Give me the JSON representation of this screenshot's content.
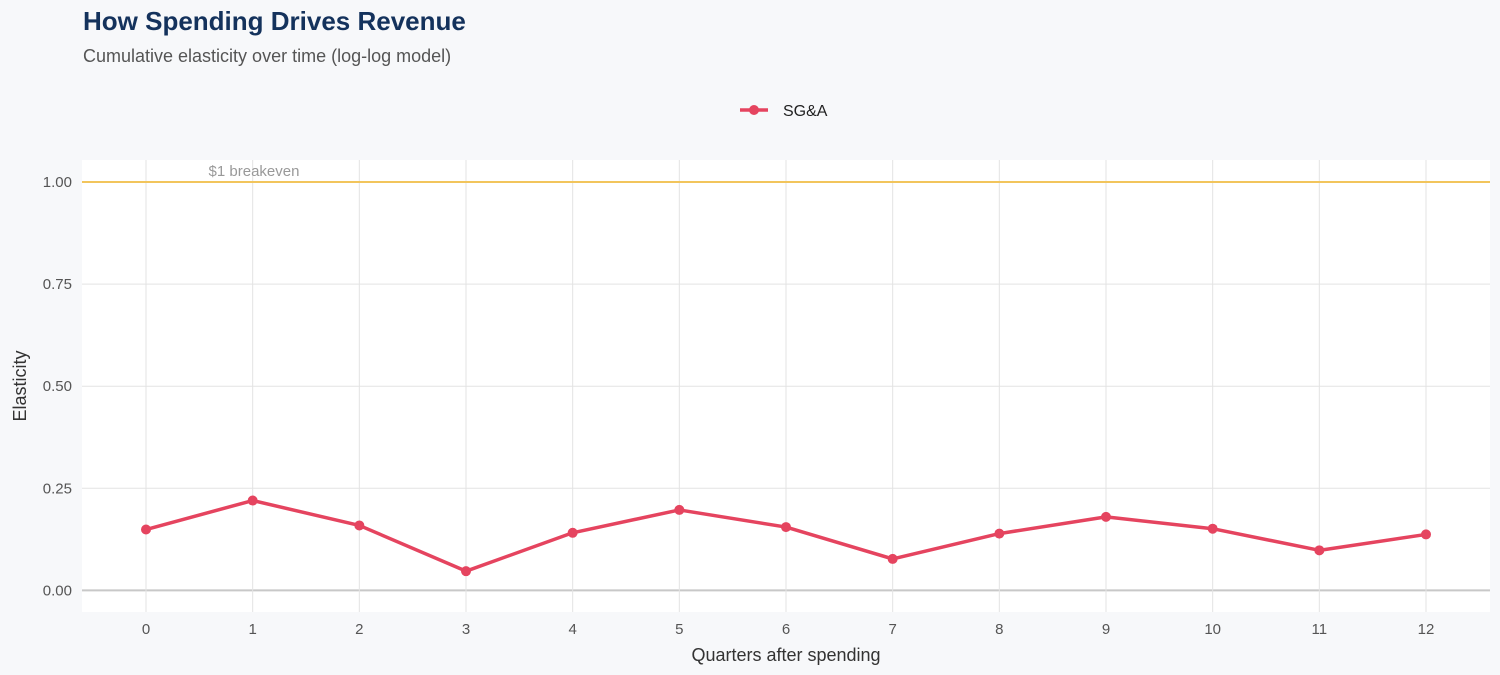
{
  "chart_data": {
    "type": "line",
    "title": "How Spending Drives Revenue",
    "subtitle": "Cumulative elasticity over time (log-log model)",
    "xlabel": "Quarters after spending",
    "ylabel": "Elasticity",
    "x": [
      0,
      1,
      2,
      3,
      4,
      5,
      6,
      7,
      8,
      9,
      10,
      11,
      12
    ],
    "x_tick_labels": [
      "0",
      "1",
      "2",
      "3",
      "4",
      "5",
      "6",
      "7",
      "8",
      "9",
      "10",
      "11",
      "12"
    ],
    "y_tick_values": [
      0,
      0.25,
      0.5,
      0.75,
      1.0
    ],
    "y_tick_labels": [
      "0.00",
      "0.25",
      "0.50",
      "0.75",
      "1.00"
    ],
    "xlim": [
      -0.6,
      12.6
    ],
    "ylim": [
      -0.053,
      1.054
    ],
    "grid": true,
    "legend_position": "top",
    "series": [
      {
        "name": "SG&A",
        "color": "#e5445f",
        "values": [
          0.149,
          0.22,
          0.159,
          0.047,
          0.141,
          0.197,
          0.155,
          0.077,
          0.139,
          0.18,
          0.151,
          0.098,
          0.137
        ]
      }
    ],
    "reference_line": {
      "y": 1.0,
      "label": "$1 breakeven",
      "color": "#f2c55c"
    }
  }
}
